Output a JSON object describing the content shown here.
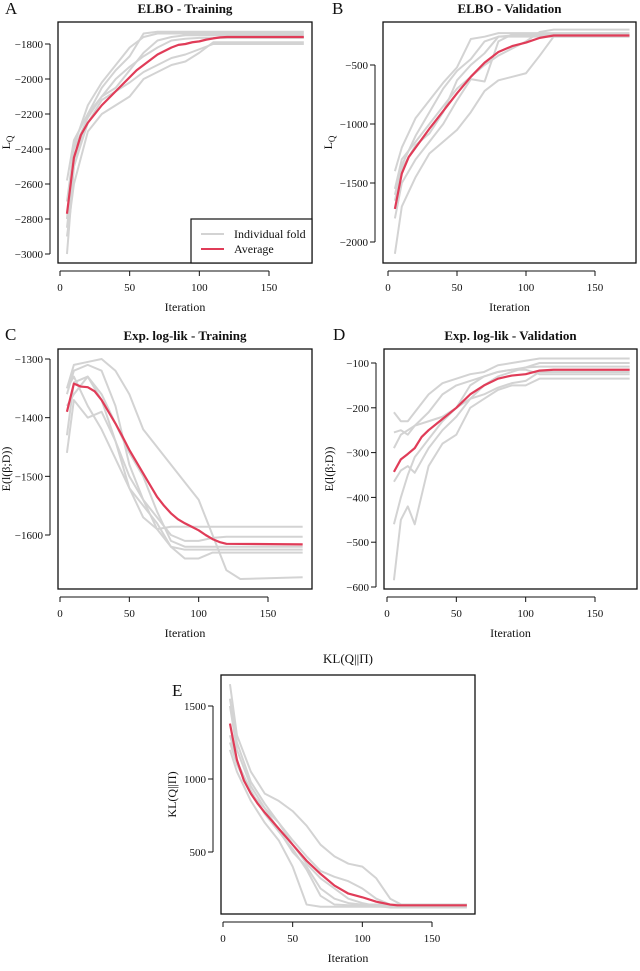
{
  "colors": {
    "fold": "#d3d3d3",
    "average": "#e03c58",
    "axis": "#111111"
  },
  "legend": {
    "placement": "bottom-right of panel A",
    "entries": [
      "Individual fold",
      "Average"
    ]
  },
  "chart_data": [
    {
      "panel": "A",
      "type": "line",
      "title": "ELBO - Training",
      "xlabel": "Iteration",
      "ylabel_main": "L",
      "ylabel_sub": "Q",
      "xlim": [
        0,
        175
      ],
      "ylim": [
        -3050,
        -1675
      ],
      "xticks": [
        0,
        50,
        100,
        150
      ],
      "yticks": [
        -3000,
        -2800,
        -2600,
        -2400,
        -2200,
        -2000,
        -1800
      ],
      "grid": false,
      "average": {
        "x": [
          5,
          10,
          15,
          20,
          25,
          30,
          35,
          40,
          45,
          50,
          55,
          60,
          65,
          70,
          75,
          80,
          85,
          90,
          95,
          100,
          105,
          110,
          115,
          120,
          175
        ],
        "y": [
          -2770,
          -2450,
          -2320,
          -2250,
          -2200,
          -2150,
          -2110,
          -2070,
          -2030,
          -1990,
          -1950,
          -1920,
          -1890,
          -1860,
          -1840,
          -1820,
          -1805,
          -1800,
          -1790,
          -1785,
          -1775,
          -1768,
          -1762,
          -1760,
          -1760
        ]
      },
      "folds_x": [
        5,
        10,
        20,
        30,
        40,
        50,
        60,
        70,
        80,
        90,
        100,
        110,
        120,
        175
      ],
      "folds": [
        [
          -3000,
          -2500,
          -2200,
          -2050,
          -1950,
          -1870,
          -1740,
          -1730,
          -1730,
          -1730,
          -1730,
          -1730,
          -1730,
          -1730
        ],
        [
          -2580,
          -2350,
          -2200,
          -2100,
          -2050,
          -1950,
          -1850,
          -1780,
          -1760,
          -1750,
          -1750,
          -1750,
          -1750,
          -1750
        ],
        [
          -2900,
          -2600,
          -2300,
          -2200,
          -2150,
          -2100,
          -2000,
          -1960,
          -1920,
          -1900,
          -1850,
          -1790,
          -1790,
          -1790
        ],
        [
          -2850,
          -2500,
          -2250,
          -2120,
          -2070,
          -2020,
          -1960,
          -1920,
          -1880,
          -1860,
          -1830,
          -1800,
          -1800,
          -1800
        ],
        [
          -2700,
          -2400,
          -2220,
          -2100,
          -2000,
          -1930,
          -1870,
          -1820,
          -1780,
          -1770,
          -1765,
          -1765,
          -1765,
          -1765
        ],
        [
          -2800,
          -2380,
          -2150,
          -2020,
          -1920,
          -1820,
          -1760,
          -1740,
          -1740,
          -1740,
          -1740,
          -1740,
          -1740,
          -1740
        ]
      ]
    },
    {
      "panel": "B",
      "type": "line",
      "title": "ELBO - Validation",
      "xlabel": "Iteration",
      "ylabel_main": "L",
      "ylabel_sub": "Q",
      "xlim": [
        0,
        175
      ],
      "ylim": [
        -2180,
        -105
      ],
      "xticks": [
        0,
        50,
        100,
        150
      ],
      "yticks": [
        -2000,
        -1500,
        -1000,
        -500
      ],
      "grid": false,
      "average": {
        "x": [
          5,
          10,
          15,
          20,
          30,
          40,
          50,
          60,
          70,
          80,
          90,
          100,
          110,
          120,
          175
        ],
        "y": [
          -1720,
          -1420,
          -1280,
          -1200,
          -1040,
          -890,
          -740,
          -600,
          -480,
          -390,
          -340,
          -310,
          -270,
          -250,
          -250
        ]
      },
      "folds_x": [
        5,
        10,
        20,
        30,
        40,
        50,
        60,
        70,
        80,
        90,
        100,
        110,
        120,
        175
      ],
      "folds": [
        [
          -1400,
          -1200,
          -950,
          -800,
          -650,
          -520,
          -280,
          -260,
          -230,
          -230,
          -230,
          -230,
          -230,
          -230
        ],
        [
          -2100,
          -1700,
          -1450,
          -1250,
          -1150,
          -1050,
          -900,
          -720,
          -630,
          -600,
          -570,
          -420,
          -260,
          -260
        ],
        [
          -1600,
          -1350,
          -1100,
          -900,
          -700,
          -550,
          -450,
          -300,
          -260,
          -260,
          -260,
          -260,
          -260,
          -260
        ],
        [
          -1800,
          -1500,
          -1300,
          -1150,
          -1000,
          -800,
          -620,
          -640,
          -300,
          -240,
          -240,
          -240,
          -240,
          -240
        ],
        [
          -1550,
          -1300,
          -1150,
          -1000,
          -850,
          -700,
          -600,
          -500,
          -420,
          -360,
          -300,
          -220,
          -200,
          -200
        ],
        [
          -1650,
          -1380,
          -1180,
          -1080,
          -900,
          -630,
          -500,
          -400,
          -260,
          -250,
          -250,
          -250,
          -250,
          -250
        ]
      ]
    },
    {
      "panel": "C",
      "type": "line",
      "title": "Exp. log-lik - Training",
      "xlabel": "Iteration",
      "ylabel": "E(l(β;D))",
      "xlim": [
        0,
        175
      ],
      "ylim": [
        -1683,
        -1295
      ],
      "xticks": [
        0,
        50,
        100,
        150
      ],
      "yticks": [
        -1600,
        -1500,
        -1400,
        -1300
      ],
      "grid": false,
      "average": {
        "x": [
          5,
          10,
          15,
          20,
          25,
          30,
          35,
          40,
          45,
          50,
          55,
          60,
          65,
          70,
          75,
          80,
          85,
          90,
          95,
          100,
          105,
          110,
          115,
          120,
          175
        ],
        "y": [
          -1390,
          -1342,
          -1347,
          -1348,
          -1355,
          -1370,
          -1390,
          -1410,
          -1432,
          -1455,
          -1475,
          -1495,
          -1515,
          -1535,
          -1550,
          -1563,
          -1573,
          -1580,
          -1586,
          -1592,
          -1600,
          -1607,
          -1612,
          -1615,
          -1616
        ]
      },
      "folds_x": [
        5,
        10,
        20,
        30,
        40,
        50,
        60,
        70,
        80,
        90,
        100,
        110,
        120,
        130,
        175
      ],
      "folds": [
        [
          -1350,
          -1310,
          -1305,
          -1300,
          -1320,
          -1360,
          -1420,
          -1450,
          -1480,
          -1510,
          -1540,
          -1600,
          -1660,
          -1675,
          -1672
        ],
        [
          -1460,
          -1370,
          -1400,
          -1390,
          -1440,
          -1520,
          -1570,
          -1590,
          -1586,
          -1586,
          -1586,
          -1586,
          -1586,
          -1586,
          -1586
        ],
        [
          -1430,
          -1340,
          -1330,
          -1370,
          -1440,
          -1500,
          -1540,
          -1590,
          -1620,
          -1625,
          -1625,
          -1625,
          -1625,
          -1625,
          -1625
        ],
        [
          -1360,
          -1320,
          -1310,
          -1320,
          -1380,
          -1480,
          -1540,
          -1570,
          -1600,
          -1610,
          -1610,
          -1605,
          -1603,
          -1603,
          -1603
        ],
        [
          -1350,
          -1330,
          -1380,
          -1420,
          -1470,
          -1520,
          -1550,
          -1580,
          -1620,
          -1640,
          -1640,
          -1630,
          -1630,
          -1630,
          -1630
        ],
        [
          -1380,
          -1360,
          -1330,
          -1360,
          -1410,
          -1460,
          -1500,
          -1560,
          -1610,
          -1620,
          -1620,
          -1620,
          -1620,
          -1620,
          -1620
        ]
      ]
    },
    {
      "panel": "D",
      "type": "line",
      "title": "Exp. log-lik - Validation",
      "xlabel": "Iteration",
      "ylabel": "E(l(β;D))",
      "xlim": [
        0,
        175
      ],
      "ylim": [
        -610,
        -70
      ],
      "xticks": [
        0,
        50,
        100,
        150
      ],
      "yticks": [
        -600,
        -500,
        -400,
        -300,
        -200,
        -100
      ],
      "grid": false,
      "average": {
        "x": [
          5,
          10,
          15,
          20,
          25,
          30,
          40,
          50,
          60,
          70,
          80,
          90,
          100,
          110,
          120,
          175
        ],
        "y": [
          -343,
          -315,
          -303,
          -290,
          -265,
          -250,
          -225,
          -200,
          -170,
          -150,
          -135,
          -128,
          -125,
          -117,
          -115,
          -115
        ]
      },
      "folds_x": [
        5,
        10,
        15,
        20,
        30,
        40,
        50,
        60,
        70,
        80,
        90,
        100,
        110,
        120,
        175
      ],
      "folds": [
        [
          -585,
          -450,
          -420,
          -460,
          -330,
          -280,
          -260,
          -200,
          -180,
          -160,
          -150,
          -150,
          -135,
          -135,
          -135
        ],
        [
          -210,
          -230,
          -230,
          -210,
          -170,
          -145,
          -135,
          -125,
          -120,
          -105,
          -100,
          -95,
          -90,
          -90,
          -90
        ],
        [
          -460,
          -400,
          -350,
          -310,
          -270,
          -230,
          -200,
          -180,
          -150,
          -130,
          -120,
          -110,
          -100,
          -100,
          -100
        ],
        [
          -290,
          -260,
          -250,
          -240,
          -210,
          -170,
          -150,
          -140,
          -130,
          -120,
          -115,
          -110,
          -108,
          -108,
          -108
        ],
        [
          -365,
          -340,
          -330,
          -345,
          -290,
          -250,
          -220,
          -180,
          -170,
          -155,
          -145,
          -140,
          -120,
          -120,
          -120
        ],
        [
          -255,
          -250,
          -260,
          -240,
          -230,
          -220,
          -200,
          -150,
          -130,
          -120,
          -115,
          -115,
          -125,
          -125,
          -125
        ]
      ]
    },
    {
      "panel": "E",
      "type": "line",
      "title": "KL(Q||Π)",
      "xlabel": "Iteration",
      "ylabel": "KL(Q||Π)",
      "xlim": [
        0,
        175
      ],
      "ylim": [
        70,
        1710
      ],
      "xticks": [
        0,
        50,
        100,
        150
      ],
      "yticks": [
        500,
        1000,
        1500
      ],
      "grid": false,
      "average": {
        "x": [
          5,
          10,
          15,
          20,
          25,
          30,
          40,
          50,
          60,
          70,
          80,
          90,
          100,
          110,
          120,
          125,
          175
        ],
        "y": [
          1380,
          1130,
          990,
          900,
          830,
          770,
          660,
          550,
          440,
          350,
          270,
          215,
          190,
          160,
          140,
          135,
          135
        ]
      },
      "folds_x": [
        5,
        10,
        20,
        30,
        40,
        50,
        60,
        70,
        80,
        90,
        100,
        110,
        120,
        130,
        175
      ],
      "folds": [
        [
          1650,
          1300,
          1050,
          900,
          850,
          780,
          680,
          550,
          470,
          420,
          400,
          320,
          180,
          130,
          130
        ],
        [
          1200,
          1050,
          850,
          700,
          580,
          400,
          140,
          125,
          125,
          125,
          125,
          125,
          125,
          125,
          125
        ],
        [
          1500,
          1200,
          950,
          800,
          700,
          580,
          470,
          370,
          330,
          300,
          250,
          180,
          140,
          140,
          140
        ],
        [
          1250,
          1100,
          900,
          800,
          650,
          500,
          400,
          250,
          180,
          150,
          140,
          140,
          140,
          140,
          140
        ],
        [
          1550,
          1250,
          980,
          830,
          700,
          550,
          420,
          320,
          250,
          180,
          150,
          130,
          120,
          120,
          120
        ],
        [
          1300,
          1120,
          920,
          760,
          640,
          520,
          380,
          200,
          140,
          135,
          135,
          135,
          135,
          135,
          135
        ]
      ]
    }
  ]
}
